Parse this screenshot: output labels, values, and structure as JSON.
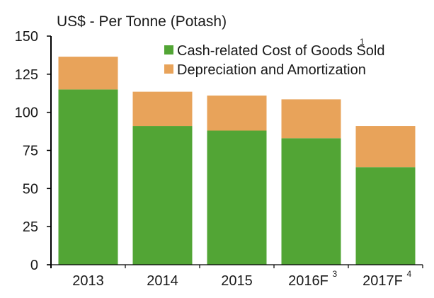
{
  "chart_data": {
    "type": "bar",
    "stacked": true,
    "title": "US$ - Per Tonne (Potash)",
    "xlabel": "",
    "ylabel": "US$ - Per Tonne (Potash)",
    "ylim": [
      0,
      150
    ],
    "yticks": [
      0,
      25,
      50,
      75,
      100,
      125,
      150
    ],
    "grid": false,
    "legend_position": "top-right",
    "categories": [
      {
        "label": "2013",
        "sup": ""
      },
      {
        "label": "2014",
        "sup": ""
      },
      {
        "label": "2015",
        "sup": ""
      },
      {
        "label": "2016F",
        "sup": "3"
      },
      {
        "label": "2017F",
        "sup": "4"
      }
    ],
    "series": [
      {
        "name": "Cash-related Cost of Goods Sold",
        "sup": "1",
        "color": "#52a535",
        "values": [
          115,
          91,
          88,
          83,
          64
        ]
      },
      {
        "name": "Depreciation and Amortization",
        "sup": "",
        "color": "#e8a35a",
        "values": [
          21.5,
          22.5,
          23,
          25.5,
          27
        ]
      }
    ]
  }
}
